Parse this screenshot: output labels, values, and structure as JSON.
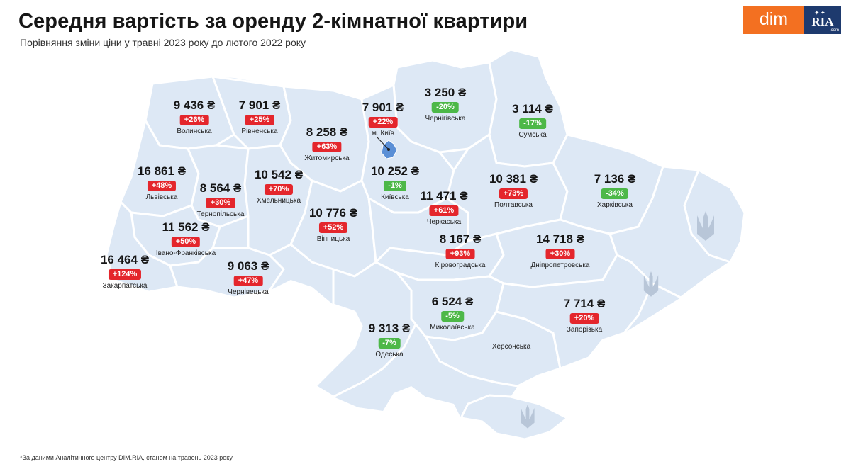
{
  "title": "Середня вартість за оренду 2-кімнатної квартири",
  "subtitle": "Порівняння зміни ціни у травні 2023 року до лютого 2022 року",
  "logo": {
    "left": "dim",
    "right": "RIA",
    "right_domain": ".com"
  },
  "footnote": "*За даними Аналітичного центру DIM.RIA, станом на травень 2023 року",
  "colors": {
    "increase": "#e4262c",
    "decrease": "#4db848",
    "map_fill": "#dde8f5",
    "brand_orange": "#f37021",
    "brand_navy": "#1e3a6e"
  },
  "regions": [
    {
      "name": "Волинська",
      "price": "9 436 ₴",
      "change": "+26%",
      "trend": "up"
    },
    {
      "name": "Рівненська",
      "price": "7 901 ₴",
      "change": "+25%",
      "trend": "up"
    },
    {
      "name": "Житомирська",
      "price": "8 258 ₴",
      "change": "+63%",
      "trend": "up"
    },
    {
      "name": "м. Київ",
      "price": "7 901 ₴",
      "change": "+22%",
      "trend": "up"
    },
    {
      "name": "Чернігівська",
      "price": "3 250 ₴",
      "change": "-20%",
      "trend": "down"
    },
    {
      "name": "Сумська",
      "price": "3 114 ₴",
      "change": "-17%",
      "trend": "down"
    },
    {
      "name": "Львівська",
      "price": "16 861 ₴",
      "change": "+48%",
      "trend": "up"
    },
    {
      "name": "Тернопільська",
      "price": "8 564 ₴",
      "change": "+30%",
      "trend": "up"
    },
    {
      "name": "Хмельницька",
      "price": "10 542 ₴",
      "change": "+70%",
      "trend": "up"
    },
    {
      "name": "Київська",
      "price": "10 252 ₴",
      "change": "-1%",
      "trend": "down"
    },
    {
      "name": "Полтавська",
      "price": "10 381 ₴",
      "change": "+73%",
      "trend": "up"
    },
    {
      "name": "Харківська",
      "price": "7 136 ₴",
      "change": "-34%",
      "trend": "down"
    },
    {
      "name": "Черкаська",
      "price": "11 471 ₴",
      "change": "+61%",
      "trend": "up"
    },
    {
      "name": "Вінницька",
      "price": "10 776 ₴",
      "change": "+52%",
      "trend": "up"
    },
    {
      "name": "Івано-Франківська",
      "price": "11 562 ₴",
      "change": "+50%",
      "trend": "up"
    },
    {
      "name": "Кіровоградська",
      "price": "8 167 ₴",
      "change": "+93%",
      "trend": "up"
    },
    {
      "name": "Дніпропетровська",
      "price": "14 718 ₴",
      "change": "+30%",
      "trend": "up"
    },
    {
      "name": "Закарпатська",
      "price": "16 464 ₴",
      "change": "+124%",
      "trend": "up"
    },
    {
      "name": "Чернівецька",
      "price": "9 063 ₴",
      "change": "+47%",
      "trend": "up"
    },
    {
      "name": "Миколаївська",
      "price": "6 524 ₴",
      "change": "-5%",
      "trend": "down"
    },
    {
      "name": "Запорізька",
      "price": "7 714 ₴",
      "change": "+20%",
      "trend": "up"
    },
    {
      "name": "Одеська",
      "price": "9 313 ₴",
      "change": "-7%",
      "trend": "down"
    },
    {
      "name": "Херсонська",
      "price": "",
      "change": "",
      "trend": "none"
    }
  ]
}
